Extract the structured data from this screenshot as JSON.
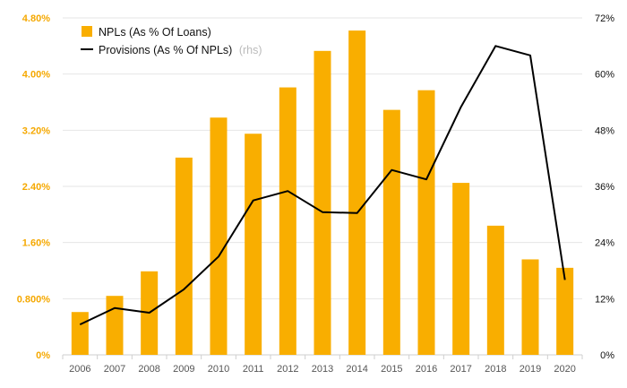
{
  "chart_data": {
    "type": "bar+line",
    "categories": [
      "2006",
      "2007",
      "2008",
      "2009",
      "2010",
      "2011",
      "2012",
      "2013",
      "2014",
      "2015",
      "2016",
      "2017",
      "2018",
      "2019",
      "2020"
    ],
    "series": [
      {
        "name": "NPLs (As % Of Loans)",
        "type": "bar",
        "axis": "left",
        "color": "#f9ae00",
        "values": [
          0.61,
          0.84,
          1.19,
          2.81,
          3.38,
          3.15,
          3.81,
          4.33,
          4.62,
          3.49,
          3.77,
          2.45,
          1.84,
          1.36,
          1.24
        ]
      },
      {
        "name": "Provisions (As % Of NPLs)",
        "type": "line",
        "axis": "right",
        "color": "#000000",
        "values": [
          6.5,
          10.0,
          9.0,
          14.0,
          21.0,
          33.0,
          35.0,
          30.5,
          30.3,
          39.5,
          37.5,
          53.0,
          66.0,
          64.0,
          16.0
        ]
      }
    ],
    "legend": {
      "bar_label": "NPLs (As % Of Loans)",
      "line_label": "Provisions (As % Of NPLs)",
      "line_suffix": "(rhs)",
      "placement": "top-left"
    },
    "y_left": {
      "ticks": [
        "0%",
        "0.800%",
        "1.60%",
        "2.40%",
        "3.20%",
        "4.00%",
        "4.80%"
      ],
      "ylim": [
        0,
        4.8
      ],
      "color": "#f5a800"
    },
    "y_right": {
      "ticks": [
        "0%",
        "12%",
        "24%",
        "36%",
        "48%",
        "60%",
        "72%"
      ],
      "ylim": [
        0,
        72
      ]
    },
    "grid": "horizontal"
  }
}
